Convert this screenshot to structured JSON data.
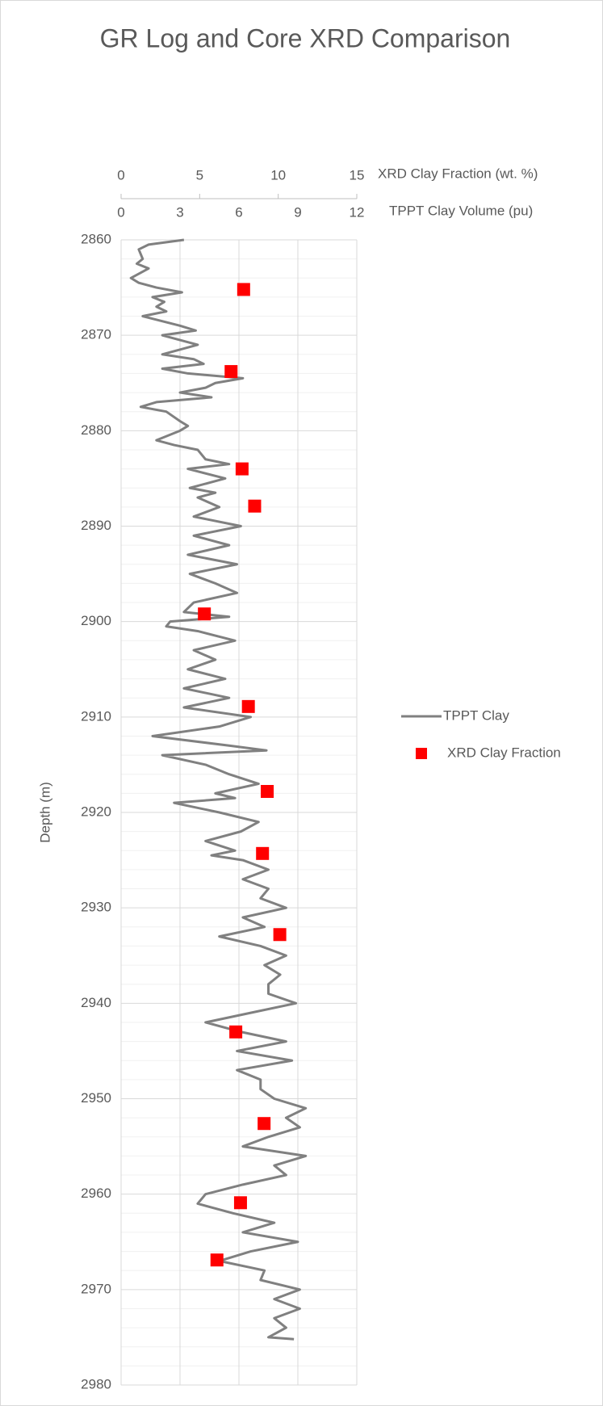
{
  "chart_data": {
    "type": "combo",
    "title": "GR Log and Core XRD Comparison",
    "xlabel": "XRD Clay Fraction (wt. %)",
    "xlim": [
      0,
      15
    ],
    "xticks": [
      0,
      5,
      10,
      15
    ],
    "x2label": "TPPT Clay Volume (pu)",
    "x2lim": [
      0,
      12
    ],
    "x2ticks": [
      0,
      3,
      6,
      9,
      12
    ],
    "ylabel": "Depth (m)",
    "ylim": [
      2860,
      2980
    ],
    "y_inverted": true,
    "yticks": [
      2860,
      2870,
      2880,
      2890,
      2900,
      2910,
      2920,
      2930,
      2940,
      2950,
      2960,
      2970,
      2980
    ],
    "grid": true,
    "minor_grid": true,
    "legend": "right",
    "series": [
      {
        "name": "TPPT Clay",
        "type": "line",
        "axis": "x2",
        "color": "#808080",
        "depth": [
          2860,
          2860.5,
          2861,
          2862,
          2862.5,
          2863,
          2864,
          2864.5,
          2865,
          2865.5,
          2866,
          2866.5,
          2867,
          2867.5,
          2868,
          2869,
          2869.5,
          2870,
          2871,
          2872,
          2872.5,
          2873,
          2873.5,
          2874,
          2874.5,
          2875,
          2875.5,
          2876,
          2876.5,
          2877,
          2877.5,
          2878,
          2879,
          2879.5,
          2880,
          2881,
          2881.5,
          2882,
          2883,
          2883.5,
          2884,
          2885,
          2886,
          2886.5,
          2887,
          2888,
          2889,
          2890,
          2891,
          2892,
          2893,
          2894,
          2895,
          2896,
          2897,
          2898,
          2899,
          2899.5,
          2900,
          2900.5,
          2901,
          2902,
          2903,
          2904,
          2905,
          2906,
          2907,
          2908,
          2909,
          2910,
          2911,
          2912,
          2913,
          2913.5,
          2914,
          2915,
          2916,
          2917,
          2918,
          2918.5,
          2919,
          2920,
          2921,
          2922,
          2923,
          2924,
          2924.5,
          2925,
          2926,
          2927,
          2928,
          2929,
          2930,
          2931,
          2932,
          2933,
          2934,
          2935,
          2936,
          2937,
          2938,
          2939,
          2940,
          2941,
          2942,
          2943,
          2944,
          2945,
          2946,
          2947,
          2948,
          2949,
          2950,
          2951,
          2952,
          2953,
          2954,
          2955,
          2956,
          2957,
          2958,
          2959,
          2960,
          2961,
          2962,
          2963,
          2964,
          2965,
          2966,
          2967,
          2968,
          2969,
          2970,
          2971,
          2972,
          2973,
          2974,
          2975,
          2975.2
        ],
        "values": [
          3.2,
          1.4,
          0.9,
          1.1,
          0.8,
          1.4,
          0.5,
          0.9,
          1.8,
          3.1,
          1.6,
          2.2,
          1.8,
          2.3,
          1.1,
          3.0,
          3.8,
          2.1,
          3.9,
          2.1,
          3.7,
          4.2,
          2.1,
          3.4,
          6.2,
          4.8,
          4.3,
          3.0,
          4.6,
          1.8,
          1.0,
          2.3,
          3.0,
          3.4,
          3.0,
          1.8,
          2.7,
          3.9,
          4.3,
          5.5,
          3.4,
          5.3,
          3.5,
          4.8,
          3.9,
          5.0,
          3.7,
          6.1,
          3.7,
          5.5,
          3.4,
          5.9,
          3.5,
          4.8,
          5.9,
          3.7,
          3.2,
          5.5,
          2.5,
          2.3,
          3.9,
          5.8,
          3.7,
          4.8,
          3.4,
          5.3,
          3.2,
          5.5,
          3.2,
          6.6,
          5.0,
          1.6,
          5.5,
          7.4,
          2.1,
          4.3,
          5.5,
          7.0,
          4.8,
          5.8,
          2.7,
          5.0,
          7.0,
          6.1,
          4.3,
          5.8,
          4.6,
          6.2,
          7.5,
          6.2,
          7.5,
          7.1,
          8.4,
          6.2,
          7.3,
          5.0,
          7.1,
          8.4,
          7.3,
          8.1,
          7.5,
          7.5,
          8.9,
          6.6,
          4.3,
          6.1,
          8.4,
          5.9,
          8.7,
          5.9,
          7.1,
          7.1,
          7.8,
          9.4,
          8.4,
          9.1,
          7.5,
          6.2,
          9.4,
          7.8,
          8.4,
          6.2,
          4.3,
          3.9,
          5.7,
          7.8,
          6.2,
          9.0,
          6.6,
          5.0,
          7.3,
          7.1,
          9.1,
          7.8,
          9.1,
          7.8,
          8.4,
          7.5,
          8.8
        ]
      },
      {
        "name": "XRD Clay Fraction",
        "type": "scatter",
        "axis": "x",
        "color": "#ff0000",
        "depth": [
          2865.2,
          2873.8,
          2884.0,
          2887.9,
          2899.2,
          2908.9,
          2917.8,
          2924.3,
          2932.8,
          2943.0,
          2952.6,
          2960.9,
          2966.9
        ],
        "values": [
          7.8,
          7.0,
          7.7,
          8.5,
          5.3,
          8.1,
          9.3,
          9.0,
          10.1,
          7.3,
          9.1,
          7.6,
          6.1
        ]
      }
    ]
  }
}
